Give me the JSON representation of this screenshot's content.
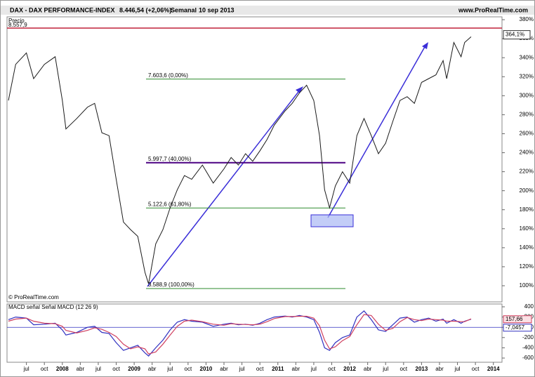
{
  "header": {
    "title": "DAX - DAX PERFORMANCE-INDEX",
    "quote": "8.446,54 (+2,06%)",
    "period": "Semanal",
    "date": "10 sep 2013",
    "site": "www.ProRealTime.com"
  },
  "chart_data": [
    {
      "type": "line",
      "axis_label": "Precio",
      "credit": "© ProRealTime.com",
      "x": [
        2007.25,
        2007.35,
        2007.5,
        2007.6,
        2007.75,
        2007.9,
        2008.0,
        2008.05,
        2008.2,
        2008.35,
        2008.45,
        2008.55,
        2008.65,
        2008.75,
        2008.85,
        2008.95,
        2009.05,
        2009.15,
        2009.2,
        2009.3,
        2009.4,
        2009.5,
        2009.6,
        2009.7,
        2009.8,
        2009.95,
        2010.1,
        2010.25,
        2010.35,
        2010.45,
        2010.55,
        2010.65,
        2010.75,
        2010.85,
        2010.95,
        2011.1,
        2011.2,
        2011.3,
        2011.4,
        2011.5,
        2011.58,
        2011.65,
        2011.72,
        2011.8,
        2011.9,
        2012.0,
        2012.1,
        2012.2,
        2012.3,
        2012.4,
        2012.5,
        2012.6,
        2012.7,
        2012.8,
        2012.9,
        2013.0,
        2013.1,
        2013.2,
        2013.3,
        2013.35,
        2013.45,
        2013.55,
        2013.6,
        2013.69
      ],
      "series": [
        {
          "name": "DAX",
          "color": "#1a1a1a",
          "values": [
            295,
            333,
            345,
            318,
            333,
            341,
            295,
            265,
            276,
            288,
            292,
            261,
            258,
            212,
            167,
            159,
            152,
            114,
            102,
            144,
            159,
            182,
            201,
            216,
            212,
            227,
            208,
            223,
            235,
            227,
            239,
            231,
            242,
            254,
            269,
            284,
            292,
            303,
            311,
            295,
            258,
            201,
            182,
            205,
            220,
            208,
            258,
            276,
            258,
            239,
            250,
            273,
            295,
            299,
            292,
            314,
            318,
            322,
            337,
            318,
            356,
            341,
            356,
            362
          ]
        }
      ],
      "xlim": [
        2007.23,
        2014.12
      ],
      "ylim": [
        83,
        383
      ],
      "yticks": [
        {
          "value": 100,
          "label": "100%"
        },
        {
          "value": 120,
          "label": "120%"
        },
        {
          "value": 140,
          "label": "140%"
        },
        {
          "value": 160,
          "label": "160%"
        },
        {
          "value": 180,
          "label": "180%"
        },
        {
          "value": 200,
          "label": "200%"
        },
        {
          "value": 220,
          "label": "220%"
        },
        {
          "value": 240,
          "label": "240%"
        },
        {
          "value": 260,
          "label": "260%"
        },
        {
          "value": 280,
          "label": "280%"
        },
        {
          "value": 300,
          "label": "300%"
        },
        {
          "value": 320,
          "label": "320%"
        },
        {
          "value": 340,
          "label": "340%"
        },
        {
          "value": 360,
          "label": "360%"
        },
        {
          "value": 380,
          "label": "380%"
        }
      ],
      "xticks": [
        {
          "value": 2007.5,
          "label": "jul"
        },
        {
          "value": 2007.75,
          "label": "oct"
        },
        2008,
        {
          "value": 2008.25,
          "label": "abr"
        },
        {
          "value": 2008.5,
          "label": "jul"
        },
        {
          "value": 2008.75,
          "label": "oct"
        },
        2009,
        {
          "value": 2009.25,
          "label": "abr"
        },
        {
          "value": 2009.5,
          "label": "jul"
        },
        {
          "value": 2009.75,
          "label": "oct"
        },
        2010,
        {
          "value": 2010.25,
          "label": "abr"
        },
        {
          "value": 2010.5,
          "label": "jul"
        },
        {
          "value": 2010.75,
          "label": "oct"
        },
        2011,
        {
          "value": 2011.25,
          "label": "abr"
        },
        {
          "value": 2011.5,
          "label": "jul"
        },
        {
          "value": 2011.75,
          "label": "oct"
        },
        2012,
        {
          "value": 2012.25,
          "label": "abr"
        },
        {
          "value": 2012.5,
          "label": "jul"
        },
        {
          "value": 2012.75,
          "label": "oct"
        },
        2013,
        {
          "value": 2013.25,
          "label": "abr"
        },
        {
          "value": 2013.5,
          "label": "jul"
        },
        {
          "value": 2013.75,
          "label": "oct"
        },
        2014
      ],
      "levels": [
        {
          "value": 317.5,
          "label": "7.603,6 (0,00%)",
          "color": "#2e8b2e"
        },
        {
          "value": 229.5,
          "label": "5.997,7 (40,00%)",
          "color": "#4b0082"
        },
        {
          "value": 181.8,
          "label": "5.122,6 (61,80%)",
          "color": "#2e8b2e"
        },
        {
          "value": 97,
          "label": "3.588,9 (100,00%)",
          "color": "#2e8b2e"
        }
      ],
      "hline": {
        "value": 371.2,
        "label": "8.557,9",
        "color": "#c0203a"
      },
      "last": {
        "value": 364.1,
        "label": "364,1%"
      }
    },
    {
      "type": "line",
      "legend": "MACD señal Señal MACD (12 26 9)",
      "x": [
        2007.25,
        2007.35,
        2007.5,
        2007.6,
        2007.75,
        2007.9,
        2008.0,
        2008.05,
        2008.2,
        2008.35,
        2008.45,
        2008.55,
        2008.65,
        2008.75,
        2008.85,
        2008.95,
        2009.05,
        2009.15,
        2009.2,
        2009.3,
        2009.4,
        2009.5,
        2009.6,
        2009.7,
        2009.8,
        2009.95,
        2010.1,
        2010.25,
        2010.35,
        2010.45,
        2010.55,
        2010.65,
        2010.75,
        2010.85,
        2010.95,
        2011.1,
        2011.2,
        2011.3,
        2011.4,
        2011.5,
        2011.58,
        2011.65,
        2011.72,
        2011.8,
        2011.9,
        2012.0,
        2012.1,
        2012.2,
        2012.3,
        2012.4,
        2012.5,
        2012.6,
        2012.7,
        2012.8,
        2012.9,
        2013.0,
        2013.1,
        2013.2,
        2013.3,
        2013.35,
        2013.45,
        2013.55,
        2013.6,
        2013.69
      ],
      "series": [
        {
          "name": "MACD",
          "color": "#3030c0",
          "values": [
            150,
            200,
            180,
            50,
            60,
            80,
            -50,
            -150,
            -100,
            0,
            20,
            -100,
            -120,
            -300,
            -450,
            -400,
            -350,
            -500,
            -560,
            -400,
            -250,
            -50,
            100,
            150,
            120,
            100,
            20,
            60,
            80,
            50,
            60,
            40,
            80,
            150,
            200,
            220,
            200,
            230,
            200,
            150,
            -100,
            -400,
            -450,
            -300,
            -200,
            -150,
            200,
            320,
            150,
            -50,
            -80,
            50,
            180,
            200,
            100,
            150,
            180,
            120,
            160,
            80,
            150,
            80,
            120,
            157.66
          ]
        },
        {
          "name": "señal",
          "color": "#d04060",
          "values": [
            120,
            160,
            180,
            120,
            80,
            70,
            20,
            -60,
            -110,
            -60,
            -10,
            -40,
            -100,
            -180,
            -330,
            -420,
            -380,
            -420,
            -520,
            -480,
            -330,
            -150,
            20,
            120,
            140,
            110,
            60,
            40,
            70,
            60,
            55,
            50,
            60,
            110,
            170,
            210,
            210,
            215,
            215,
            180,
            30,
            -250,
            -420,
            -380,
            -260,
            -180,
            50,
            250,
            230,
            60,
            -60,
            -20,
            110,
            190,
            150,
            130,
            160,
            150,
            140,
            120,
            120,
            110,
            110,
            164.7
          ]
        }
      ],
      "ylim": [
        -682,
        455
      ],
      "yticks": [
        400,
        200,
        0,
        -200,
        -400,
        -600
      ],
      "markers": [
        {
          "value": 157.66,
          "label": "157,66"
        },
        {
          "value": -7.0457,
          "label": "-7,0457"
        }
      ]
    }
  ]
}
